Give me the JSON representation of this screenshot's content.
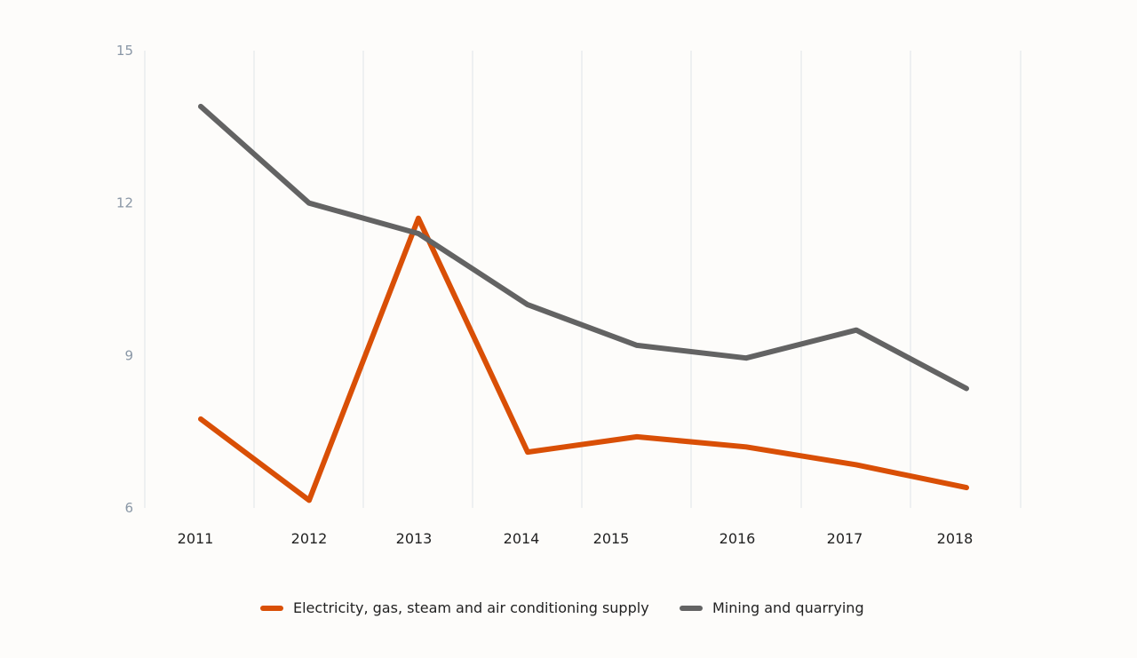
{
  "chart_data": {
    "type": "line",
    "categories": [
      "2011",
      "2012",
      "2013",
      "2014",
      "2015",
      "2016",
      "2017",
      "2018"
    ],
    "ylim": [
      6,
      15
    ],
    "yticks": [
      6,
      9,
      12,
      15
    ],
    "grid": "vertical",
    "legend_placement": "bottom",
    "series": [
      {
        "name": "Electricity, gas, steam and air conditioning supply",
        "color": "#d94f06",
        "values": [
          7.75,
          6.15,
          11.7,
          7.1,
          7.4,
          7.2,
          6.85,
          6.4
        ]
      },
      {
        "name": "Mining and quarrying",
        "color": "#636363",
        "values": [
          13.9,
          12.0,
          11.4,
          10.0,
          9.2,
          8.95,
          9.5,
          8.35
        ]
      }
    ]
  }
}
